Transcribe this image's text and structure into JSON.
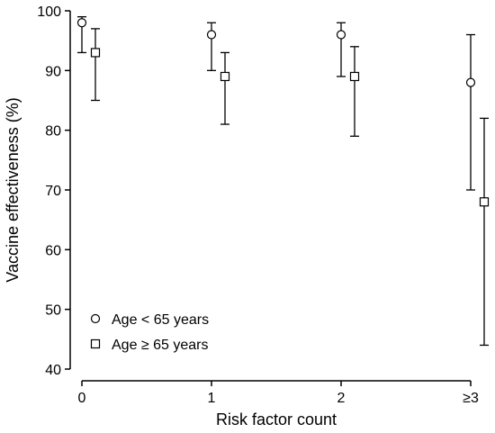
{
  "chart_data": {
    "type": "scatter",
    "title": "",
    "xlabel": "Risk factor count",
    "ylabel": "Vaccine effectiveness (%)",
    "categories": [
      "0",
      "1",
      "2",
      "≥3"
    ],
    "ylim": [
      40,
      100
    ],
    "yticks": [
      "40",
      "50",
      "60",
      "70",
      "80",
      "90",
      "100"
    ],
    "grid": false,
    "legend_position": "bottom-left",
    "series": [
      {
        "name": "Age < 65 years",
        "marker": "circle",
        "values": [
          98,
          96,
          96,
          88
        ],
        "lower": [
          93,
          90,
          89,
          70
        ],
        "upper": [
          99,
          98,
          98,
          96
        ]
      },
      {
        "name": "Age ≥ 65 years",
        "marker": "square",
        "values": [
          93,
          89,
          89,
          68
        ],
        "lower": [
          85,
          81,
          79,
          44
        ],
        "upper": [
          97,
          93,
          94,
          82
        ]
      }
    ]
  }
}
